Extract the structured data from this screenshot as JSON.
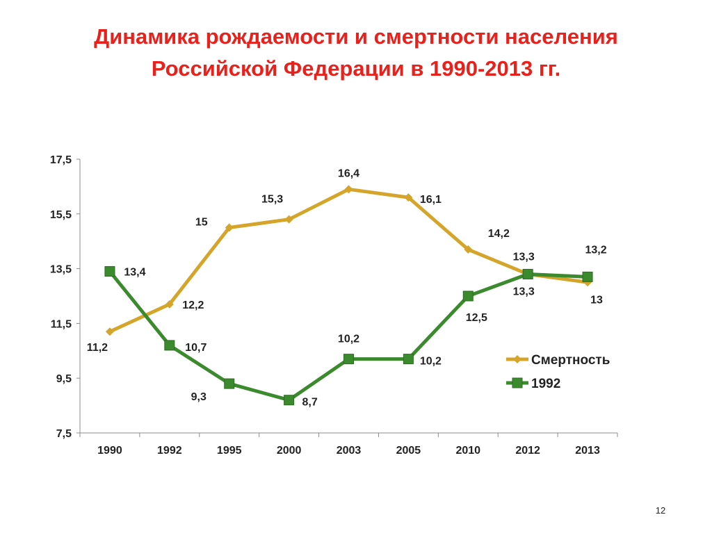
{
  "title": {
    "line1": "Динамика рождаемости и смертности населения",
    "line2": "Российской Федерации в 1990-2013 гг."
  },
  "page_number": "12",
  "chart_data": {
    "type": "line",
    "categories": [
      "1990",
      "1992",
      "1995",
      "2000",
      "2003",
      "2005",
      "2010",
      "2012",
      "2013"
    ],
    "y_ticks": [
      "7,5",
      "9,5",
      "11,5",
      "13,5",
      "15,5",
      "17,5"
    ],
    "ylim": [
      7.5,
      17.5
    ],
    "ytick_step": 2,
    "grid": false,
    "legend_position": "right",
    "series": [
      {
        "name": "Смертность",
        "values": [
          11.2,
          12.2,
          15,
          15.3,
          16.4,
          16.1,
          14.2,
          13.3,
          13
        ],
        "labels": [
          "11,2",
          "12,2",
          "15",
          "15,3",
          "16,4",
          "16,1",
          "14,2",
          "13,3",
          "13"
        ],
        "color": "#d4a52a",
        "marker": "diamond"
      },
      {
        "name": "1992",
        "values": [
          13.4,
          10.7,
          9.3,
          8.7,
          10.2,
          10.2,
          12.5,
          13.3,
          13.2
        ],
        "labels": [
          "13,4",
          "10,7",
          "9,3",
          "8,7",
          "10,2",
          "10,2",
          "12,5",
          "13,3",
          "13,2"
        ],
        "color": "#3b8a2e",
        "marker": "square"
      }
    ]
  }
}
